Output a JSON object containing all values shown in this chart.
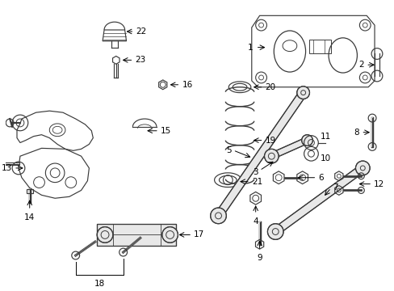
{
  "background_color": "#ffffff",
  "fig_width": 4.89,
  "fig_height": 3.6,
  "dpi": 100,
  "gray": "#3a3a3a",
  "lw": 0.85
}
